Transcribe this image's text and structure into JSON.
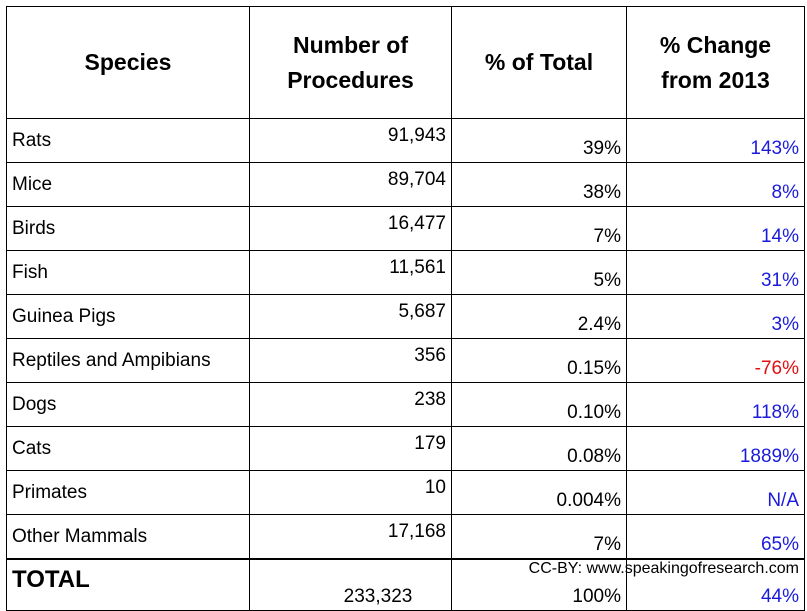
{
  "table": {
    "headers": [
      "Species",
      "Number of Procedures",
      "% of Total",
      "% Change from 2013"
    ],
    "rows": [
      [
        "Rats",
        "91,943",
        "39%",
        "143%"
      ],
      [
        "Mice",
        "89,704",
        "38%",
        "8%"
      ],
      [
        "Birds",
        "16,477",
        "7%",
        "14%"
      ],
      [
        "Fish",
        "11,561",
        "5%",
        "31%"
      ],
      [
        "Guinea Pigs",
        "5,687",
        "2.4%",
        "3%"
      ],
      [
        "Reptiles and Ampibians",
        "356",
        "0.15%",
        "-76%"
      ],
      [
        "Dogs",
        "238",
        "0.10%",
        "118%"
      ],
      [
        "Cats",
        "179",
        "0.08%",
        "1889%"
      ],
      [
        "Primates",
        "10",
        "0.004%",
        "N/A"
      ],
      [
        "Other Mammals",
        "17,168",
        "7%",
        "65%"
      ]
    ],
    "total": [
      "TOTAL",
      "233,323",
      "100%",
      "44%"
    ]
  },
  "footer": "CC-BY: www.speakingofresearch.com"
}
